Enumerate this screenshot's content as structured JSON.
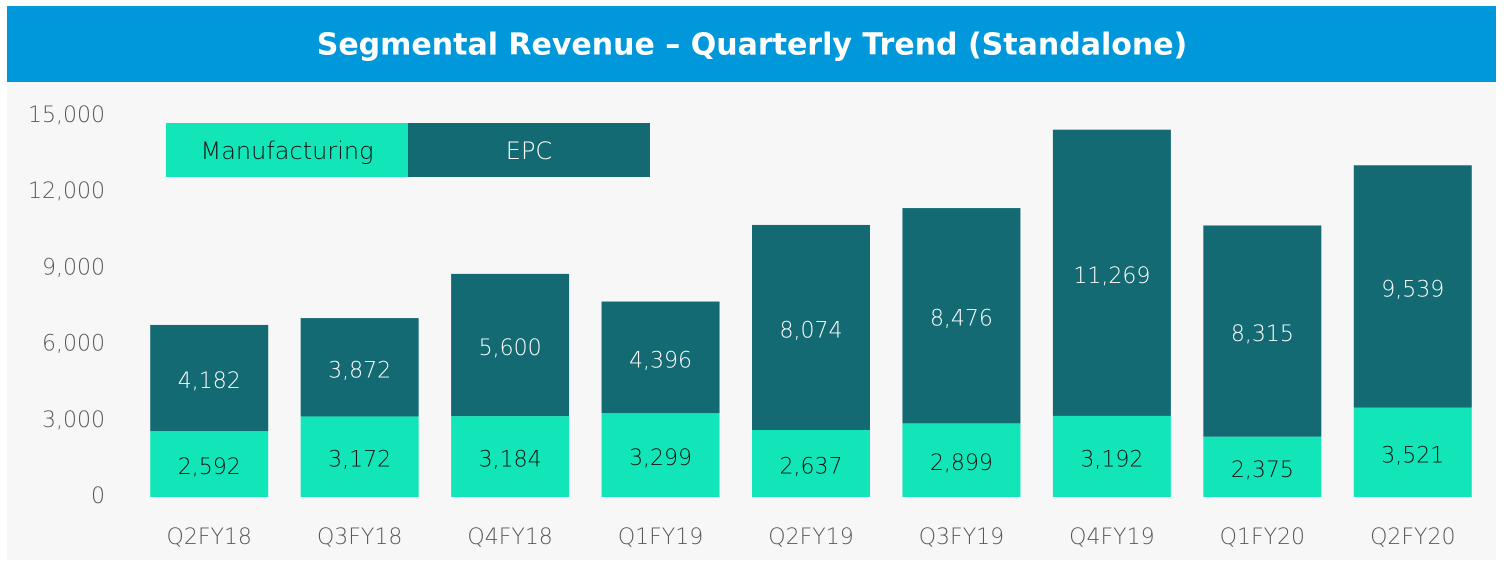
{
  "chart_data": {
    "type": "stacked_bar",
    "title": "Segmental Revenue – Quarterly Trend (Standalone)",
    "categories": [
      "Q2FY18",
      "Q3FY18",
      "Q4FY18",
      "Q1FY19",
      "Q2FY19",
      "Q3FY19",
      "Q4FY19",
      "Q1FY20",
      "Q2FY20"
    ],
    "series": [
      {
        "name": "Manufacturing",
        "color": "#12e6b8",
        "values": [
          2592,
          3172,
          3184,
          3299,
          2637,
          2899,
          3192,
          2375,
          3521
        ],
        "value_labels": [
          "2,592",
          "3,172",
          "3,184",
          "3,299",
          "2,637",
          "2,899",
          "3,192",
          "2,375",
          "3,521"
        ]
      },
      {
        "name": "EPC",
        "color": "#146a73",
        "values": [
          4182,
          3872,
          5600,
          4396,
          8074,
          8476,
          11269,
          8315,
          9539
        ],
        "value_labels": [
          "4,182",
          "3,872",
          "5,600",
          "4,396",
          "8,074",
          "8,476",
          "11,269",
          "8,315",
          "9,539"
        ]
      }
    ],
    "ylim": [
      0,
      15000
    ],
    "yticks": [
      0,
      {
        "value": 3000,
        "label": "3,000"
      },
      {
        "value": 6000,
        "label": "6,000"
      },
      {
        "value": 9000,
        "label": "9,000"
      },
      {
        "value": 12000,
        "label": "12,000"
      },
      {
        "value": 15000,
        "label": "15,000"
      }
    ],
    "grid": false,
    "legend": "top-left"
  }
}
